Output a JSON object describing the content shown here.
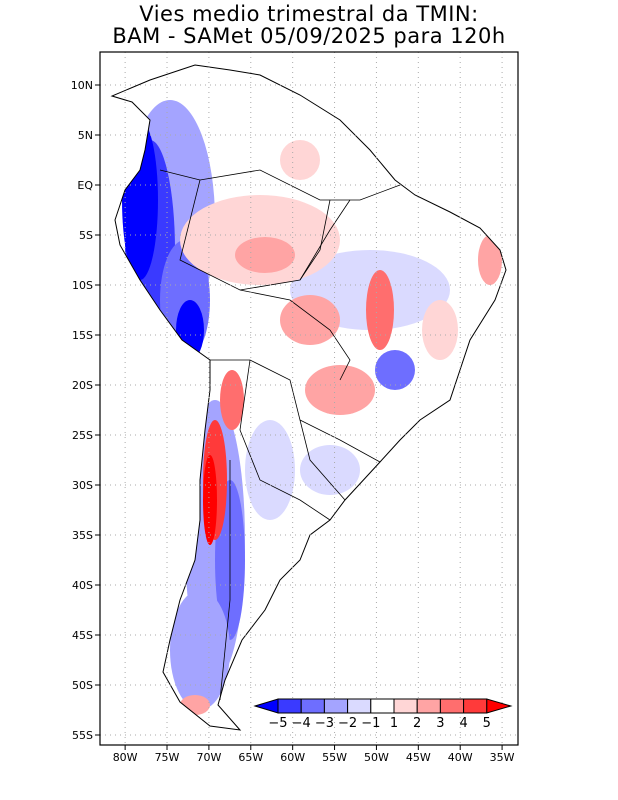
{
  "title": {
    "line1": "Vies medio trimestral da TMIN:",
    "line2": "BAM - SAMet 05/09/2025  para 120h"
  },
  "axes": {
    "lon_ticks": [
      "80W",
      "75W",
      "70W",
      "65W",
      "60W",
      "55W",
      "50W",
      "45W",
      "40W",
      "35W"
    ],
    "lon_values": [
      -80,
      -75,
      -70,
      -65,
      -60,
      -55,
      -50,
      -45,
      -40,
      -35
    ],
    "lat_ticks": [
      "10N",
      "5N",
      "EQ",
      "5S",
      "10S",
      "15S",
      "20S",
      "25S",
      "30S",
      "35S",
      "40S",
      "45S",
      "50S",
      "55S"
    ],
    "lat_values": [
      10,
      5,
      0,
      -5,
      -10,
      -15,
      -20,
      -25,
      -30,
      -35,
      -40,
      -45,
      -50,
      -55
    ],
    "lon_range": [
      -83,
      -33.1
    ],
    "lat_range": [
      -56,
      13.3
    ]
  },
  "colorbar": {
    "labels": [
      "-5",
      "-4",
      "-3",
      "-2",
      "-1",
      "1",
      "2",
      "3",
      "4",
      "5"
    ],
    "colors": [
      "#0000ff",
      "#3a3aff",
      "#6e6eff",
      "#a4a4ff",
      "#dadaff",
      "#ffffff",
      "#ffd6d6",
      "#ffa4a4",
      "#ff6e6e",
      "#ff3a3a",
      "#ff0000"
    ]
  }
}
